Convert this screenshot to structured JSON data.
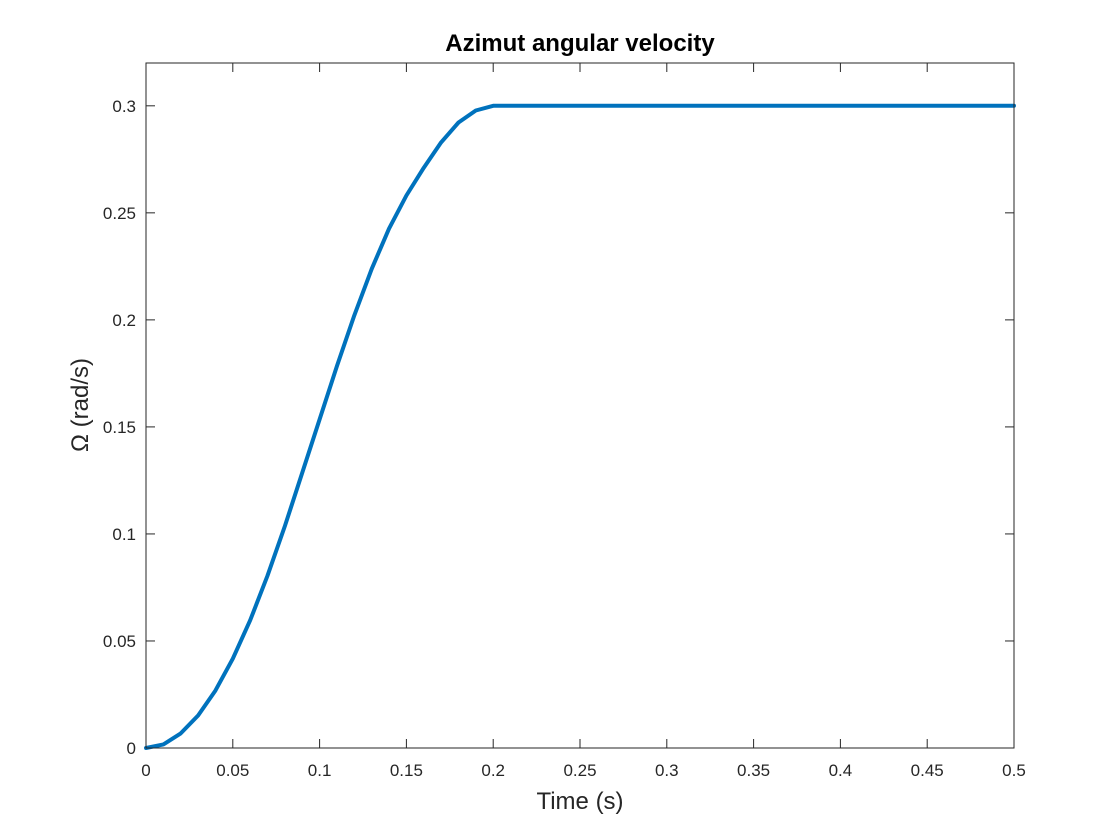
{
  "chart_data": {
    "type": "line",
    "title": "Azimut angular velocity",
    "xlabel": "Time (s)",
    "ylabel": "Ω (rad/s)",
    "xlim": [
      0,
      0.5
    ],
    "ylim": [
      0,
      0.32
    ],
    "xticks": [
      0,
      0.05,
      0.1,
      0.15,
      0.2,
      0.25,
      0.3,
      0.35,
      0.4,
      0.45,
      0.5
    ],
    "xtick_labels": [
      "0",
      "0.05",
      "0.1",
      "0.15",
      "0.2",
      "0.25",
      "0.3",
      "0.35",
      "0.4",
      "0.45",
      "0.5"
    ],
    "yticks": [
      0,
      0.05,
      0.1,
      0.15,
      0.2,
      0.25,
      0.3
    ],
    "ytick_labels": [
      "0",
      "0.05",
      "0.1",
      "0.15",
      "0.2",
      "0.25",
      "0.3"
    ],
    "grid": false,
    "series": [
      {
        "color": "#0072BD",
        "x": [
          0,
          0.01,
          0.02,
          0.03,
          0.04,
          0.05,
          0.06,
          0.07,
          0.08,
          0.09,
          0.1,
          0.11,
          0.12,
          0.13,
          0.14,
          0.15,
          0.16,
          0.17,
          0.18,
          0.19,
          0.2,
          0.25,
          0.3,
          0.35,
          0.4,
          0.45,
          0.5
        ],
        "y": [
          0,
          0.0017,
          0.0068,
          0.0152,
          0.0268,
          0.0417,
          0.0597,
          0.0805,
          0.1037,
          0.1285,
          0.1535,
          0.1785,
          0.2021,
          0.2238,
          0.2426,
          0.2581,
          0.2711,
          0.2829,
          0.2922,
          0.2978,
          0.3,
          0.3,
          0.3,
          0.3,
          0.3,
          0.3,
          0.3
        ]
      }
    ]
  }
}
